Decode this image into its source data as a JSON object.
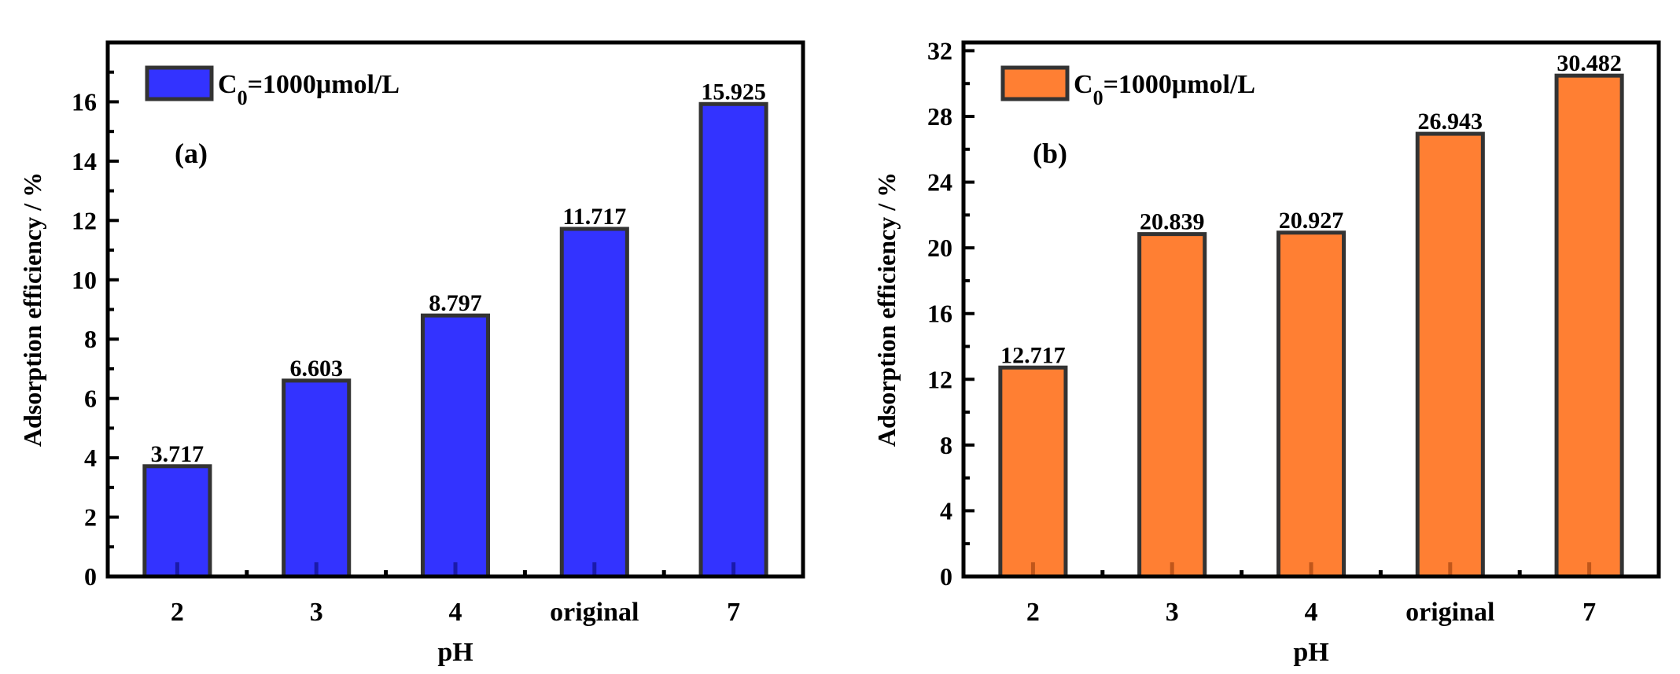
{
  "chart_data": [
    {
      "type": "bar",
      "panel_label": "(a)",
      "categories": [
        "2",
        "3",
        "4",
        "original",
        "7"
      ],
      "values": [
        3.717,
        6.603,
        8.797,
        11.717,
        15.925
      ],
      "value_labels": [
        "3.717",
        "6.603",
        "8.797",
        "11.717",
        "15.925"
      ],
      "xlabel": "pH",
      "ylabel": "Adsorption efficiency / %",
      "ylim": [
        0,
        18
      ],
      "yticks": [
        0,
        2,
        4,
        6,
        8,
        10,
        12,
        14,
        16
      ],
      "ytick_labels": [
        "0",
        "2",
        "4",
        "6",
        "8",
        "10",
        "12",
        "14",
        "16"
      ],
      "series": [
        {
          "name_main": "C",
          "name_sub": "0",
          "name_rest": "=1000μmol/L",
          "color": "#3333FF"
        }
      ],
      "legend_position": "top-left",
      "grid": false
    },
    {
      "type": "bar",
      "panel_label": "(b)",
      "categories": [
        "2",
        "3",
        "4",
        "original",
        "7"
      ],
      "values": [
        12.717,
        20.839,
        20.927,
        26.943,
        30.482
      ],
      "value_labels": [
        "12.717",
        "20.839",
        "20.927",
        "26.943",
        "30.482"
      ],
      "xlabel": "pH",
      "ylabel": "Adsorption efficiency / %",
      "ylim": [
        0,
        32.5
      ],
      "yticks": [
        0,
        4,
        8,
        12,
        16,
        20,
        24,
        28,
        32
      ],
      "ytick_labels": [
        "0",
        "4",
        "8",
        "12",
        "16",
        "20",
        "24",
        "28",
        "32"
      ],
      "series": [
        {
          "name_main": "C",
          "name_sub": "0",
          "name_rest": "=1000μmol/L",
          "color": "#FF7F33"
        }
      ],
      "legend_position": "top-left",
      "grid": false
    }
  ]
}
